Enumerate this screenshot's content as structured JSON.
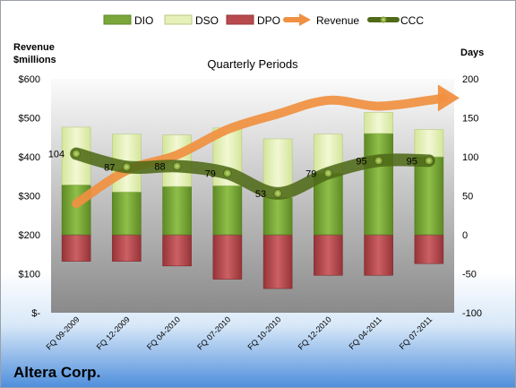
{
  "company": "Altera Corp.",
  "chart_data": {
    "type": "bar",
    "title": "Quarterly Periods",
    "left_axis_label": [
      "Revenue",
      "$millions"
    ],
    "right_axis_label": "Days",
    "left_axis": {
      "min": 0,
      "max": 600,
      "step": 100,
      "tick_labels": [
        "$-",
        "$100",
        "$200",
        "$300",
        "$400",
        "$500",
        "$600"
      ]
    },
    "right_axis": {
      "min": -100,
      "max": 200,
      "step": 50,
      "tick_labels": [
        "-100",
        "-50",
        "0",
        "50",
        "100",
        "150",
        "200"
      ]
    },
    "categories": [
      "FQ 09-2009",
      "FQ 12-2009",
      "FQ 04-2010",
      "FQ 07-2010",
      "FQ 10-2010",
      "FQ 12-2010",
      "FQ 04-2011",
      "FQ 07-2011"
    ],
    "legend": [
      "DIO",
      "DSO",
      "DPO",
      "Revenue",
      "CCC"
    ],
    "legend_placement": "top",
    "series": [
      {
        "name": "DIO",
        "axis": "right",
        "values": [
          64,
          55,
          62,
          63,
          48,
          79,
          130,
          100
        ],
        "color": "#7aa63a"
      },
      {
        "name": "DSO",
        "axis": "right",
        "values": [
          74,
          74,
          66,
          74,
          75,
          50,
          27,
          35
        ],
        "color": "#e6f0b8"
      },
      {
        "name": "DPO",
        "axis": "right",
        "values": [
          -34,
          -34,
          -40,
          -57,
          -69,
          -52,
          -52,
          -37
        ],
        "color": "#b84a4e"
      },
      {
        "name": "Revenue",
        "axis": "left",
        "values": [
          280,
          365,
          405,
          470,
          510,
          545,
          530,
          545
        ],
        "color": "#f09040"
      },
      {
        "name": "CCC",
        "axis": "right",
        "values": [
          104,
          87,
          88,
          79,
          53,
          79,
          95,
          95
        ],
        "color": "#4f6a18"
      }
    ],
    "ccc_labels": [
      "104",
      "87",
      "88",
      "79",
      "53",
      "79",
      "95",
      "95"
    ],
    "grid": false
  }
}
